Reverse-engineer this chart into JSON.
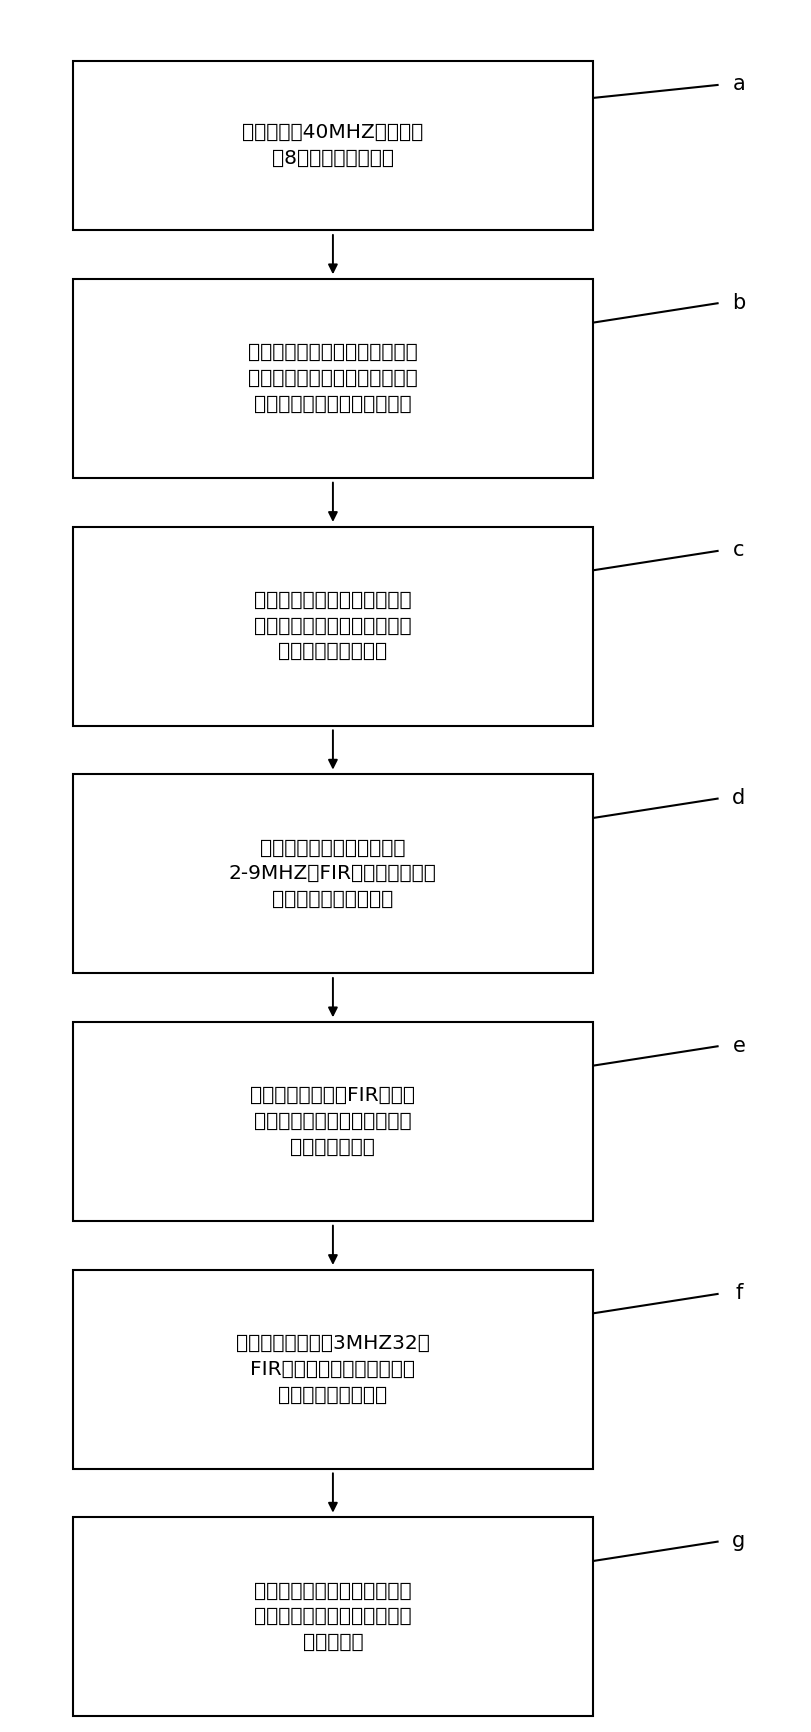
{
  "boxes": [
    {
      "label": "数据模块以40MHZ的时钟接\n收8路外部数据的步骤",
      "tag": "a",
      "lines": 2
    },
    {
      "label": "可变孔径控制模块将接收的数据\n甪高速乘法器对每通道数字信号\n进行实时动态加权处理的步骤",
      "tag": "b",
      "lines": 3
    },
    {
      "label": "聚焦延时叠加模块通过高速加\n法器将前级数据查表累加得到\n一线波速数据的步骤",
      "tag": "c",
      "lines": 3
    },
    {
      "label": "隔直降噪处理模块通过一个\n2-9MHZ的FIR带通滤波器对数\n据信号进行滤波的步骤",
      "tag": "d",
      "lines": 3
    },
    {
      "label": "动态滤波模块通过FIR带通滤\n波器自动配置参数对数据信号\n进行滤波的步骤",
      "tag": "e",
      "lines": 3
    },
    {
      "label": "包络检波模块通过3MHZ32阶\nFIR带通滤波器对数据信号做\n保罗信号提取的步骤",
      "tag": "f",
      "lines": 3
    },
    {
      "label": "对数压缩模块完成对波罗数据\n的二次采样，取绝对值和对数\n压缩的步骤",
      "tag": "g",
      "lines": 3
    }
  ],
  "box_face_color": "#ffffff",
  "box_edge_color": "#000000",
  "arrow_color": "#000000",
  "tag_color": "#000000",
  "background_color": "#ffffff",
  "fig_width": 8.12,
  "fig_height": 17.32,
  "dpi": 100
}
